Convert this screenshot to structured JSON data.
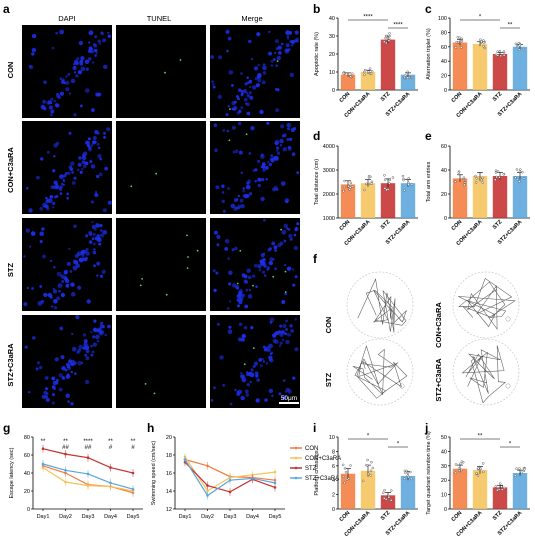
{
  "colors": {
    "CON": "#f47b3d",
    "CON+C3aRA": "#f5c35a",
    "STZ": "#c53030",
    "STZ+C3aRA": "#5aa6dc",
    "dapi": "#1b2ee6",
    "tunel": "#5fd35f"
  },
  "panel_letters": [
    "a",
    "b",
    "c",
    "d",
    "e",
    "f",
    "g",
    "h",
    "i",
    "j"
  ],
  "micro": {
    "columns": [
      "DAPI",
      "TUNEL",
      "Merge"
    ],
    "rows": [
      "CON",
      "CON+C3aRA",
      "STZ",
      "STZ+C3aRA"
    ],
    "scale_bar": "50μm"
  },
  "maze": {
    "labels": [
      "CON",
      "CON+C3aRA",
      "STZ",
      "STZ+C3aRA"
    ]
  },
  "chart_data": [
    {
      "id": "b",
      "type": "bar",
      "ylabel": "Apoptotic rate (%)",
      "ylim": [
        0,
        40
      ],
      "yticks": [
        0,
        10,
        20,
        30,
        40
      ],
      "categories": [
        "CON",
        "CON+C3aRA",
        "STZ",
        "STZ+C3aRA"
      ],
      "values": [
        8.5,
        10,
        28,
        8.5
      ],
      "errors": [
        1,
        1,
        2,
        1
      ],
      "significance": [
        {
          "from": 0,
          "to": 2,
          "text": "****"
        },
        {
          "from": 2,
          "to": 3,
          "text": "****"
        }
      ]
    },
    {
      "id": "c",
      "type": "bar",
      "ylabel": "Alternation triplet (%)",
      "ylim": [
        0,
        100
      ],
      "yticks": [
        0,
        20,
        40,
        60,
        80,
        100
      ],
      "categories": [
        "CON",
        "CON+C3aRA",
        "STZ",
        "STZ+C3aRA"
      ],
      "values": [
        66,
        64,
        50,
        60
      ],
      "errors": [
        4,
        3,
        2,
        3
      ],
      "significance": [
        {
          "from": 0,
          "to": 2,
          "text": "*"
        },
        {
          "from": 2,
          "to": 3,
          "text": "**"
        }
      ]
    },
    {
      "id": "d",
      "type": "bar",
      "ylabel": "Total distance (cm)",
      "ylim": [
        1000,
        4000
      ],
      "yticks": [
        1000,
        2000,
        3000,
        4000
      ],
      "categories": [
        "CON",
        "CON+C3aRA",
        "STZ",
        "STZ+C3aRA"
      ],
      "values": [
        2400,
        2450,
        2450,
        2450
      ],
      "errors": [
        150,
        150,
        180,
        150
      ],
      "significance": []
    },
    {
      "id": "e",
      "type": "bar",
      "ylabel": "Total arm entries",
      "ylim": [
        0,
        60
      ],
      "yticks": [
        0,
        20,
        40,
        60
      ],
      "categories": [
        "CON",
        "CON+C3aRA",
        "STZ",
        "STZ+C3aRA"
      ],
      "values": [
        33,
        35,
        35,
        35
      ],
      "errors": [
        3,
        3,
        3,
        3
      ],
      "significance": []
    },
    {
      "id": "g",
      "type": "line",
      "ylabel": "Escape latency (sec)",
      "ylim": [
        0,
        80
      ],
      "yticks": [
        0,
        20,
        40,
        60,
        80
      ],
      "x": [
        "Day1",
        "Day2",
        "Day3",
        "Day4",
        "Day5"
      ],
      "series": [
        {
          "name": "CON",
          "values": [
            48,
            40,
            27,
            25,
            18
          ]
        },
        {
          "name": "CON+C3aRA",
          "values": [
            46,
            30,
            26,
            25,
            20
          ]
        },
        {
          "name": "STZ",
          "values": [
            67,
            61,
            57,
            46,
            40
          ]
        },
        {
          "name": "STZ+C3aRA",
          "values": [
            50,
            43,
            39,
            29,
            22
          ]
        }
      ],
      "annotations": [
        {
          "x": 0,
          "lines": [
            "**"
          ]
        },
        {
          "x": 1,
          "lines": [
            "**",
            "##"
          ]
        },
        {
          "x": 2,
          "lines": [
            "****",
            "##"
          ]
        },
        {
          "x": 3,
          "lines": [
            "**",
            "#"
          ]
        },
        {
          "x": 4,
          "lines": [
            "**",
            "#"
          ]
        }
      ]
    },
    {
      "id": "h",
      "type": "line",
      "ylabel": "Swimming speed (cm/sec)",
      "ylim": [
        12,
        20
      ],
      "yticks": [
        12,
        14,
        16,
        18,
        20
      ],
      "x": [
        "Day1",
        "Day2",
        "Day3",
        "Day4",
        "Day5"
      ],
      "series": [
        {
          "name": "CON",
          "values": [
            17.5,
            16.8,
            15.6,
            15.5,
            15.2
          ]
        },
        {
          "name": "CON+C3aRA",
          "values": [
            17.8,
            14,
            15.5,
            15.8,
            16.1
          ]
        },
        {
          "name": "STZ",
          "values": [
            17.2,
            14.6,
            13.9,
            15.3,
            14.4
          ]
        },
        {
          "name": "STZ+C3aRA",
          "values": [
            17.5,
            13.5,
            15.2,
            15.4,
            14.9
          ]
        }
      ],
      "legend": [
        "CON",
        "CON+C3aRA",
        "STZ",
        "STZ+C3aRA"
      ]
    },
    {
      "id": "i",
      "type": "bar",
      "ylabel": "Platform crossings",
      "ylim": [
        0,
        10
      ],
      "yticks": [
        0,
        2,
        4,
        6,
        8,
        10
      ],
      "categories": [
        "CON",
        "CON+C3aRA",
        "STZ",
        "STZ+C3aRA"
      ],
      "values": [
        4.9,
        5.3,
        1.9,
        4.6
      ],
      "errors": [
        0.7,
        0.8,
        0.4,
        0.6
      ],
      "significance": [
        {
          "from": 0,
          "to": 2,
          "text": "*"
        },
        {
          "from": 2,
          "to": 3,
          "text": "*"
        }
      ]
    },
    {
      "id": "j",
      "type": "bar",
      "ylabel": "Target quadrant retention time (%)",
      "ylim": [
        0,
        50
      ],
      "yticks": [
        0,
        10,
        20,
        30,
        40,
        50
      ],
      "categories": [
        "CON",
        "CON+C3aRA",
        "STZ",
        "STZ+C3aRA"
      ],
      "values": [
        28,
        27,
        15,
        25
      ],
      "errors": [
        2.5,
        2.5,
        1.5,
        2
      ],
      "significance": [
        {
          "from": 0,
          "to": 2,
          "text": "**"
        },
        {
          "from": 2,
          "to": 3,
          "text": "*"
        }
      ]
    }
  ]
}
